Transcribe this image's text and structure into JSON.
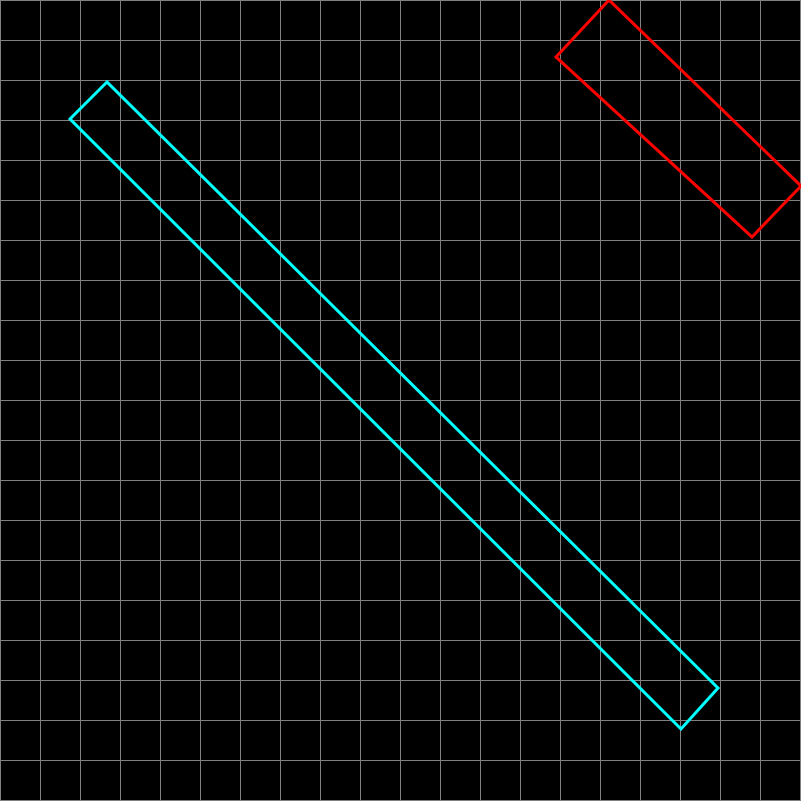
{
  "canvas": {
    "background": "#000000",
    "grid_color": "#808080"
  },
  "grid": {
    "visible": true,
    "divisions": 20
  },
  "shapes": [
    {
      "id": "cyan-rectangle",
      "type": "rotated-rectangle",
      "stroke": "#00FFFF"
    },
    {
      "id": "red-rectangle",
      "type": "rotated-rectangle",
      "stroke": "#FF0000",
      "partially_visible": true
    }
  ]
}
